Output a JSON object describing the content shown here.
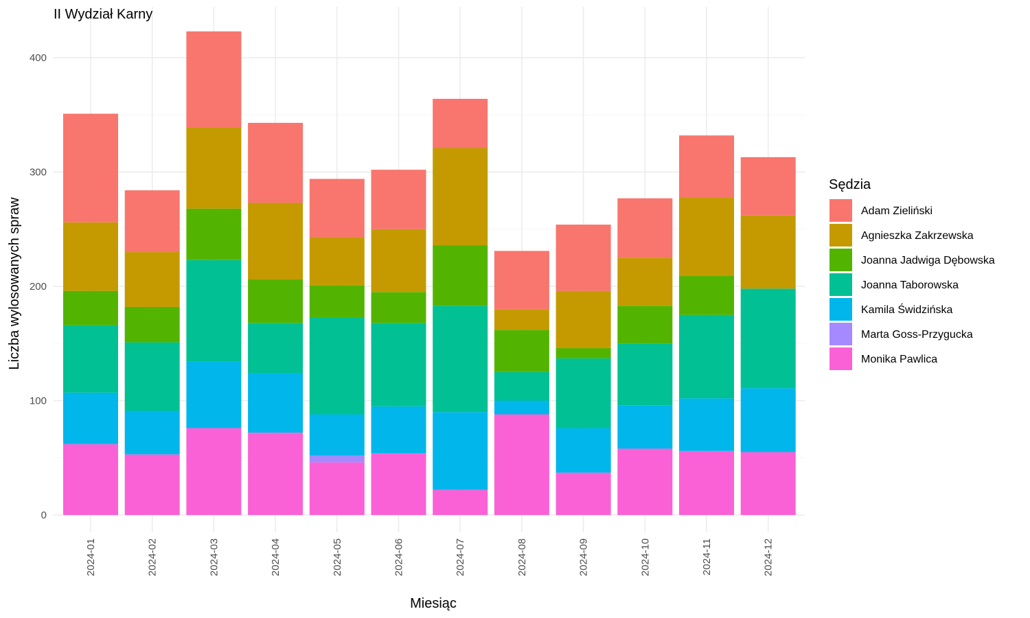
{
  "chart_data": {
    "type": "bar",
    "stacked": true,
    "title": "II Wydział Karny",
    "xlabel": "Miesiąc",
    "ylabel": "Liczba wylosowanych spraw",
    "ylim": [
      0,
      430
    ],
    "yticks": [
      0,
      100,
      200,
      300,
      400
    ],
    "grid": true,
    "legend_title": "Sędzia",
    "legend_position": "right",
    "categories": [
      "2024-01",
      "2024-02",
      "2024-03",
      "2024-04",
      "2024-05",
      "2024-06",
      "2024-07",
      "2024-08",
      "2024-09",
      "2024-10",
      "2024-11",
      "2024-12"
    ],
    "series": [
      {
        "name": "Monika Pawlica",
        "color": "#FB61D7",
        "values": [
          62,
          53,
          76,
          72,
          46,
          54,
          22,
          88,
          37,
          58,
          56,
          55
        ]
      },
      {
        "name": "Marta Goss-Przygucka",
        "color": "#A58AFF",
        "values": [
          0,
          0,
          0,
          0,
          6,
          0,
          0,
          0,
          0,
          0,
          0,
          0
        ]
      },
      {
        "name": "Kamila Świdzińska",
        "color": "#00B6EB",
        "values": [
          45,
          38,
          58,
          52,
          36,
          41,
          68,
          12,
          39,
          38,
          46,
          56
        ]
      },
      {
        "name": "Joanna Taborowska",
        "color": "#00C094",
        "values": [
          59,
          60,
          89,
          44,
          85,
          73,
          93,
          25,
          61,
          54,
          73,
          87
        ]
      },
      {
        "name": "Joanna Jadwiga Dębowska",
        "color": "#53B400",
        "values": [
          30,
          31,
          45,
          38,
          28,
          27,
          53,
          37,
          9,
          33,
          34,
          0
        ]
      },
      {
        "name": "Agnieszka Zakrzewska",
        "color": "#C49A00",
        "values": [
          60,
          48,
          71,
          67,
          42,
          55,
          85,
          18,
          50,
          42,
          69,
          64
        ]
      },
      {
        "name": "Adam Zieliński",
        "color": "#F8766D",
        "values": [
          95,
          54,
          84,
          70,
          51,
          52,
          43,
          51,
          58,
          52,
          54,
          51
        ]
      }
    ]
  }
}
